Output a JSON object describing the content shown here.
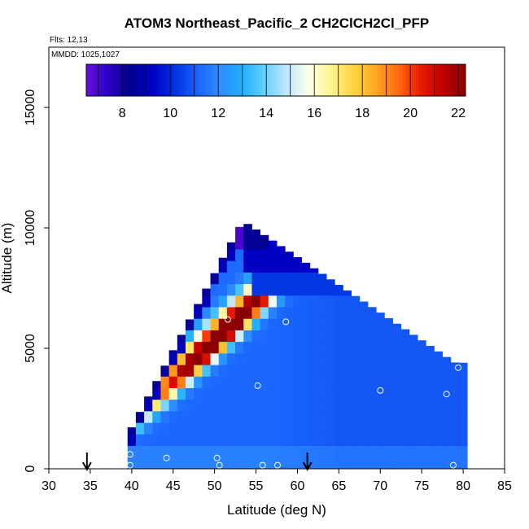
{
  "chart_data": {
    "type": "heatmap",
    "title": "ATOM3 Northeast_Pacific_2 CH2ClCH2Cl_PFP",
    "flights_label": "Flts: 12,13",
    "mmdd_label": "MMDD: 1025,1027",
    "xlabel": "Latitude (deg N)",
    "ylabel": "Altitude (m)",
    "xlim": [
      30,
      85
    ],
    "ylim": [
      0,
      17500
    ],
    "x_ticks": [
      "30",
      "35",
      "40",
      "45",
      "50",
      "55",
      "60",
      "65",
      "70",
      "75",
      "80",
      "85"
    ],
    "y_ticks": [
      "0",
      "5000",
      "10000",
      "15000"
    ],
    "colorbar": {
      "range": [
        6.5,
        22.3
      ],
      "ticks": [
        "8",
        "10",
        "12",
        "14",
        "16",
        "18",
        "20",
        "22"
      ],
      "colors": [
        "#6a0dde",
        "#2a00c0",
        "#000090",
        "#0000c8",
        "#0033e0",
        "#1a66ff",
        "#2f8cff",
        "#1fb0ff",
        "#66d0ff",
        "#bfe9ff",
        "#ffffe6",
        "#fff38a",
        "#ffd440",
        "#ffa520",
        "#ff6a10",
        "#e81a00",
        "#c00000",
        "#8b0000"
      ]
    },
    "samples": [
      {
        "lat": 39.8,
        "alt": 600
      },
      {
        "lat": 39.8,
        "alt": 150
      },
      {
        "lat": 44.2,
        "alt": 450
      },
      {
        "lat": 50.3,
        "alt": 450
      },
      {
        "lat": 50.6,
        "alt": 150
      },
      {
        "lat": 51.6,
        "alt": 6200
      },
      {
        "lat": 53.1,
        "alt": 10300
      },
      {
        "lat": 55.2,
        "alt": 3450
      },
      {
        "lat": 55.8,
        "alt": 150
      },
      {
        "lat": 57.6,
        "alt": 150
      },
      {
        "lat": 58.6,
        "alt": 6100
      },
      {
        "lat": 70.0,
        "alt": 3250
      },
      {
        "lat": 78.0,
        "alt": 3100
      },
      {
        "lat": 78.8,
        "alt": 150
      },
      {
        "lat": 79.4,
        "alt": 4200
      }
    ],
    "arrow_markers_lat": [
      34.6,
      61.2
    ]
  }
}
